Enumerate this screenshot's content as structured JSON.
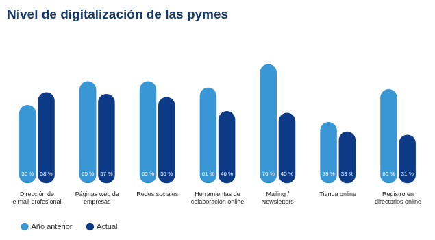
{
  "chart_data": {
    "type": "bar",
    "title": "Nivel de digitalización de las pymes",
    "categories": [
      [
        "Dirección de",
        "e-mail profesional"
      ],
      [
        "Páginas web de",
        "empresas"
      ],
      [
        "Redes sociales"
      ],
      [
        "Herramientas de",
        "colaboración online"
      ],
      [
        "Mailing /",
        "Newsletters"
      ],
      [
        "Tienda online"
      ],
      [
        "Registro en",
        "directorios online"
      ]
    ],
    "series": [
      {
        "name": "Año anterior",
        "color": "#3a97d6",
        "values": [
          50,
          65,
          65,
          61,
          76,
          39,
          60
        ],
        "value_labels": [
          "50 %",
          "65 %",
          "65 %",
          "61 %",
          "76 %",
          "39 %",
          "60 %"
        ]
      },
      {
        "name": "Actual",
        "color": "#0c3a86",
        "values": [
          58,
          57,
          55,
          46,
          45,
          33,
          31
        ],
        "value_labels": [
          "58 %",
          "57 %",
          "55 %",
          "46 %",
          "45 %",
          "33 %",
          "31 %"
        ]
      }
    ],
    "ylim": [
      0,
      85
    ],
    "grid": false,
    "legend": "bottom-left",
    "data_labels": true,
    "tick_labels": "x"
  }
}
